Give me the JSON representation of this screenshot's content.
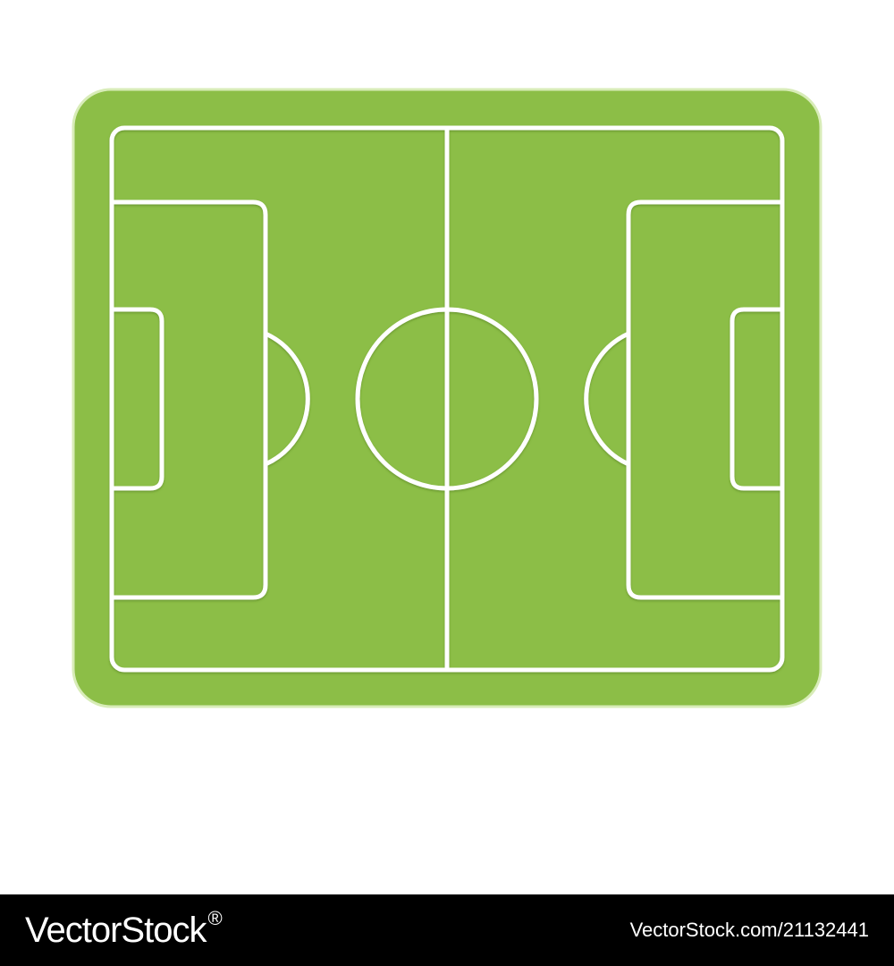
{
  "illustration": {
    "subject": "soccer-field-icon",
    "colors": {
      "grass": "#8cbe47",
      "grass_edge": "#7aab37",
      "lines": "#ffffff",
      "background": "#ffffff"
    }
  },
  "footer": {
    "brand": "VectorStock",
    "brand_mark": "®",
    "image_id": "VectorStock.com/21132441",
    "colors": {
      "bar": "#000000",
      "text": "#ffffff"
    }
  }
}
